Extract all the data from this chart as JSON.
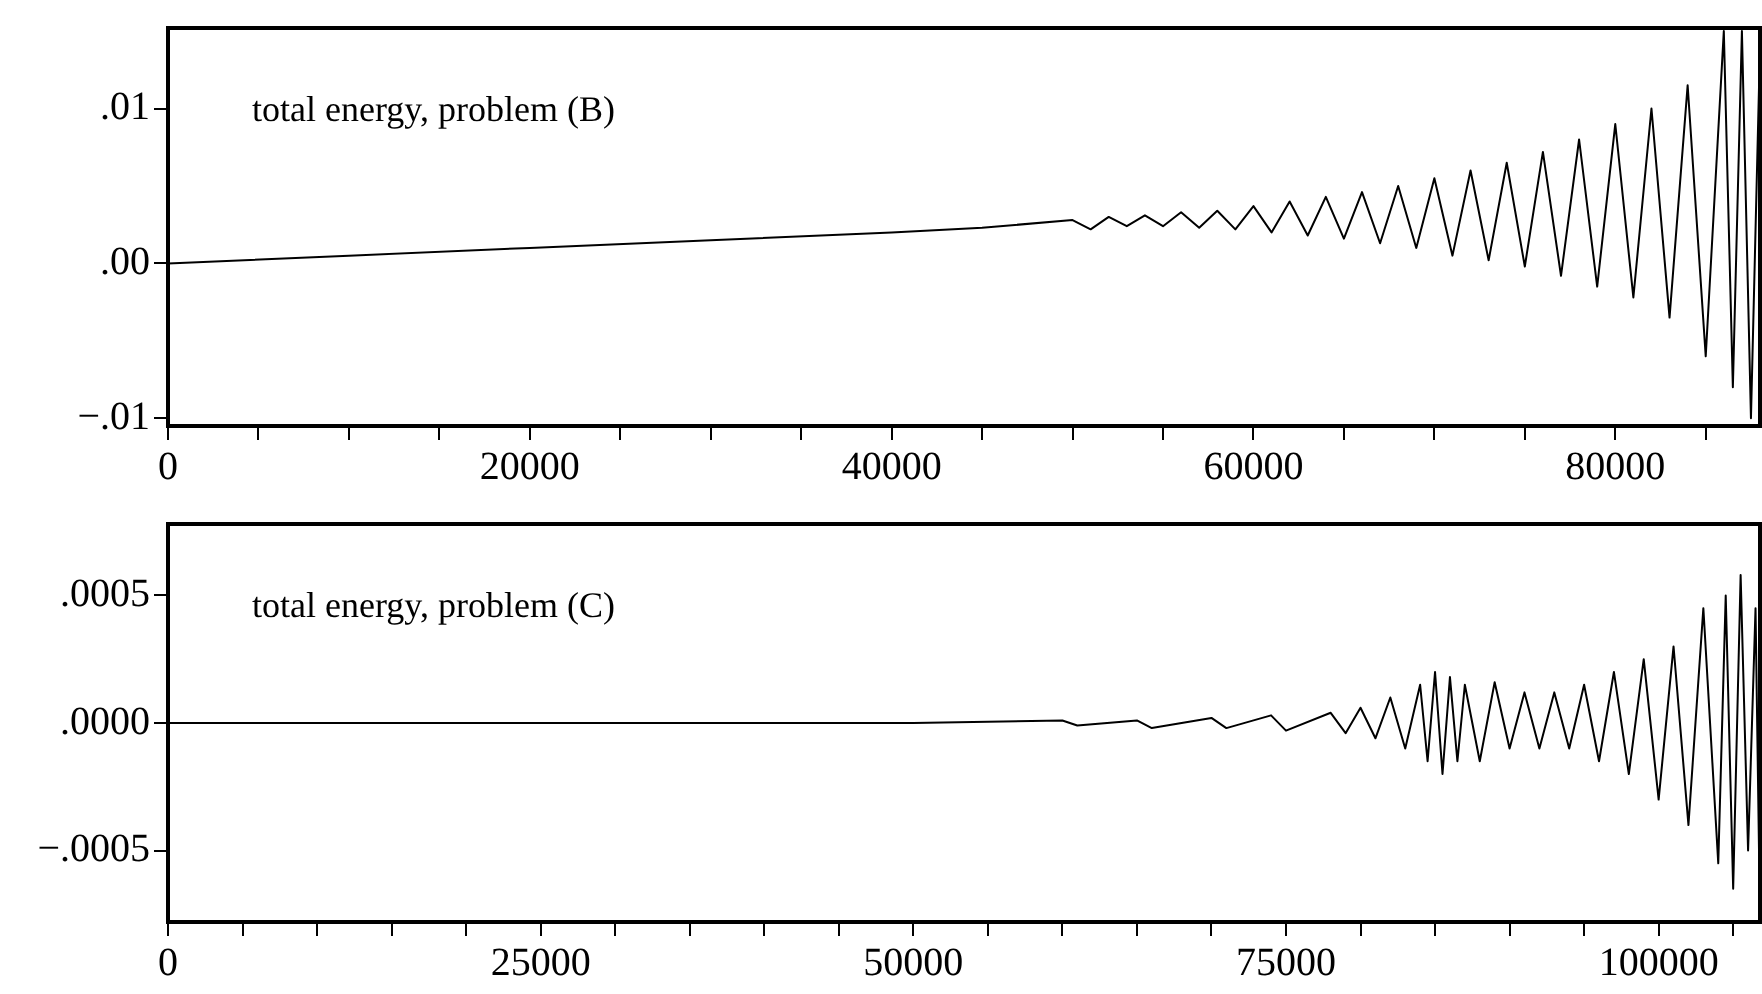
{
  "chart_data": [
    {
      "type": "line",
      "annotations": [
        "total energy, problem (B)"
      ],
      "x": [
        0,
        10000,
        20000,
        30000,
        40000,
        45000,
        50000,
        51000,
        52000,
        53000,
        54000,
        55000,
        56000,
        57000,
        58000,
        59000,
        60000,
        61000,
        62000,
        63000,
        64000,
        65000,
        66000,
        67000,
        68000,
        69000,
        70000,
        71000,
        72000,
        73000,
        74000,
        75000,
        76000,
        77000,
        78000,
        79000,
        80000,
        81000,
        82000,
        83000,
        84000,
        85000,
        86000,
        86500,
        87000,
        87500,
        88000
      ],
      "series": [
        {
          "color": "#000000",
          "values": [
            0,
            0.0005,
            0.001,
            0.0015,
            0.002,
            0.0023,
            0.0028,
            0.0022,
            0.003,
            0.0024,
            0.0031,
            0.0024,
            0.0033,
            0.0023,
            0.0034,
            0.0022,
            0.0037,
            0.002,
            0.004,
            0.0018,
            0.0043,
            0.0016,
            0.0046,
            0.0013,
            0.005,
            0.001,
            0.0055,
            0.0005,
            0.006,
            0.0002,
            0.0065,
            -0.0002,
            0.0072,
            -0.0008,
            0.008,
            -0.0015,
            0.009,
            -0.0022,
            0.01,
            -0.0035,
            0.0115,
            -0.006,
            0.015,
            -0.008,
            0.015,
            -0.01,
            0.014
          ]
        }
      ],
      "xlim": [
        0,
        88000
      ],
      "ylim": [
        -0.0105,
        0.0152
      ],
      "xticks": [
        0,
        {
          "value": 5000,
          "label": null
        },
        {
          "value": 10000,
          "label": null
        },
        {
          "value": 15000,
          "label": null
        },
        20000,
        {
          "value": 25000,
          "label": null
        },
        {
          "value": 30000,
          "label": null
        },
        {
          "value": 35000,
          "label": null
        },
        40000,
        {
          "value": 45000,
          "label": null
        },
        {
          "value": 50000,
          "label": null
        },
        {
          "value": 55000,
          "label": null
        },
        60000,
        {
          "value": 65000,
          "label": null
        },
        {
          "value": 70000,
          "label": null
        },
        {
          "value": 75000,
          "label": null
        },
        80000,
        {
          "value": 85000,
          "label": null
        }
      ],
      "yticks": [
        {
          "value": -0.01,
          "label": "−.01"
        },
        {
          "value": 0,
          "label": ".00"
        },
        {
          "value": 0.01,
          "label": ".01"
        }
      ],
      "marker": "none"
    },
    {
      "type": "line",
      "annotations": [
        "total energy, problem (C)"
      ],
      "x": [
        0,
        50000,
        60000,
        61000,
        65000,
        66000,
        70000,
        71000,
        74000,
        75000,
        78000,
        79000,
        80000,
        81000,
        82000,
        83000,
        84000,
        84500,
        85000,
        85500,
        86000,
        86500,
        87000,
        88000,
        89000,
        90000,
        91000,
        92000,
        93000,
        94000,
        95000,
        96000,
        97000,
        98000,
        99000,
        100000,
        101000,
        102000,
        103000,
        104000,
        104500,
        105000,
        105500,
        106000,
        106500,
        106800
      ],
      "series": [
        {
          "color": "#000000",
          "values": [
            0,
            0,
            1e-05,
            -1e-05,
            1e-05,
            -2e-05,
            2e-05,
            -2e-05,
            3e-05,
            -3e-05,
            4e-05,
            -4e-05,
            6e-05,
            -6e-05,
            0.0001,
            -0.0001,
            0.00015,
            -0.00015,
            0.0002,
            -0.0002,
            0.00018,
            -0.00015,
            0.00015,
            -0.00015,
            0.00016,
            -0.0001,
            0.00012,
            -0.0001,
            0.00012,
            -0.0001,
            0.00015,
            -0.00015,
            0.0002,
            -0.0002,
            0.00025,
            -0.0003,
            0.0003,
            -0.0004,
            0.00045,
            -0.00055,
            0.0005,
            -0.00065,
            0.00058,
            -0.0005,
            0.00045,
            -0.00077
          ]
        }
      ],
      "xlim": [
        0,
        106800
      ],
      "ylim": [
        -0.00078,
        0.00078
      ],
      "xticks": [
        0,
        {
          "value": 5000,
          "label": null
        },
        {
          "value": 10000,
          "label": null
        },
        {
          "value": 15000,
          "label": null
        },
        {
          "value": 20000,
          "label": null
        },
        25000,
        {
          "value": 30000,
          "label": null
        },
        {
          "value": 35000,
          "label": null
        },
        {
          "value": 40000,
          "label": null
        },
        {
          "value": 45000,
          "label": null
        },
        50000,
        {
          "value": 55000,
          "label": null
        },
        {
          "value": 60000,
          "label": null
        },
        {
          "value": 65000,
          "label": null
        },
        {
          "value": 70000,
          "label": null
        },
        75000,
        {
          "value": 80000,
          "label": null
        },
        {
          "value": 85000,
          "label": null
        },
        {
          "value": 90000,
          "label": null
        },
        {
          "value": 95000,
          "label": null
        },
        100000,
        {
          "value": 105000,
          "label": null
        }
      ],
      "yticks": [
        {
          "value": -0.0005,
          "label": "−.0005"
        },
        {
          "value": 0,
          "label": ".0000"
        },
        {
          "value": 0.0005,
          "label": ".0005"
        }
      ],
      "marker": "none"
    }
  ]
}
